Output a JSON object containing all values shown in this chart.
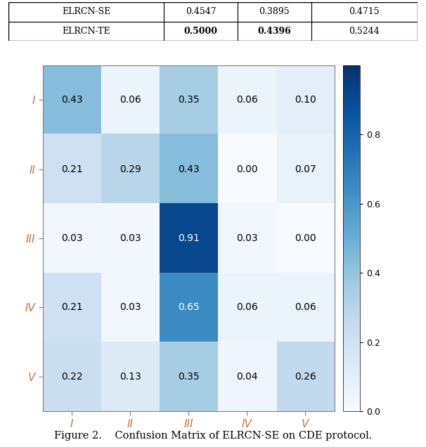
{
  "matrix": [
    [
      0.43,
      0.06,
      0.35,
      0.06,
      0.1
    ],
    [
      0.21,
      0.29,
      0.43,
      0.0,
      0.07
    ],
    [
      0.03,
      0.03,
      0.91,
      0.03,
      0.0
    ],
    [
      0.21,
      0.03,
      0.65,
      0.06,
      0.06
    ],
    [
      0.22,
      0.13,
      0.35,
      0.04,
      0.26
    ]
  ],
  "row_labels": [
    "I",
    "II",
    "III",
    "IV",
    "V"
  ],
  "col_labels": [
    "I",
    "II",
    "III",
    "IV",
    "V"
  ],
  "caption": "Figure 2.    Confusion Matrix of ELRCN-SE on CDE protocol.",
  "table_rows": [
    [
      "ELRCN-SE",
      "0.4547",
      "0.3895",
      "0.4715"
    ],
    [
      "ELRCN-TE",
      "0.5000",
      "0.4396",
      "0.5244"
    ]
  ],
  "table_bold": [
    [
      false,
      false,
      false,
      false
    ],
    [
      false,
      true,
      true,
      false
    ]
  ],
  "vmin": 0.0,
  "vmax": 1.0,
  "cmap": "Blues",
  "cell_fontsize": 10,
  "axis_label_fontsize": 11,
  "caption_fontsize": 10.5,
  "tick_color": "#c07840",
  "colorbar_ticks": [
    0.0,
    0.2,
    0.4,
    0.6,
    0.8
  ],
  "fig_width": 6.06,
  "fig_height": 6.36,
  "dpi": 100
}
